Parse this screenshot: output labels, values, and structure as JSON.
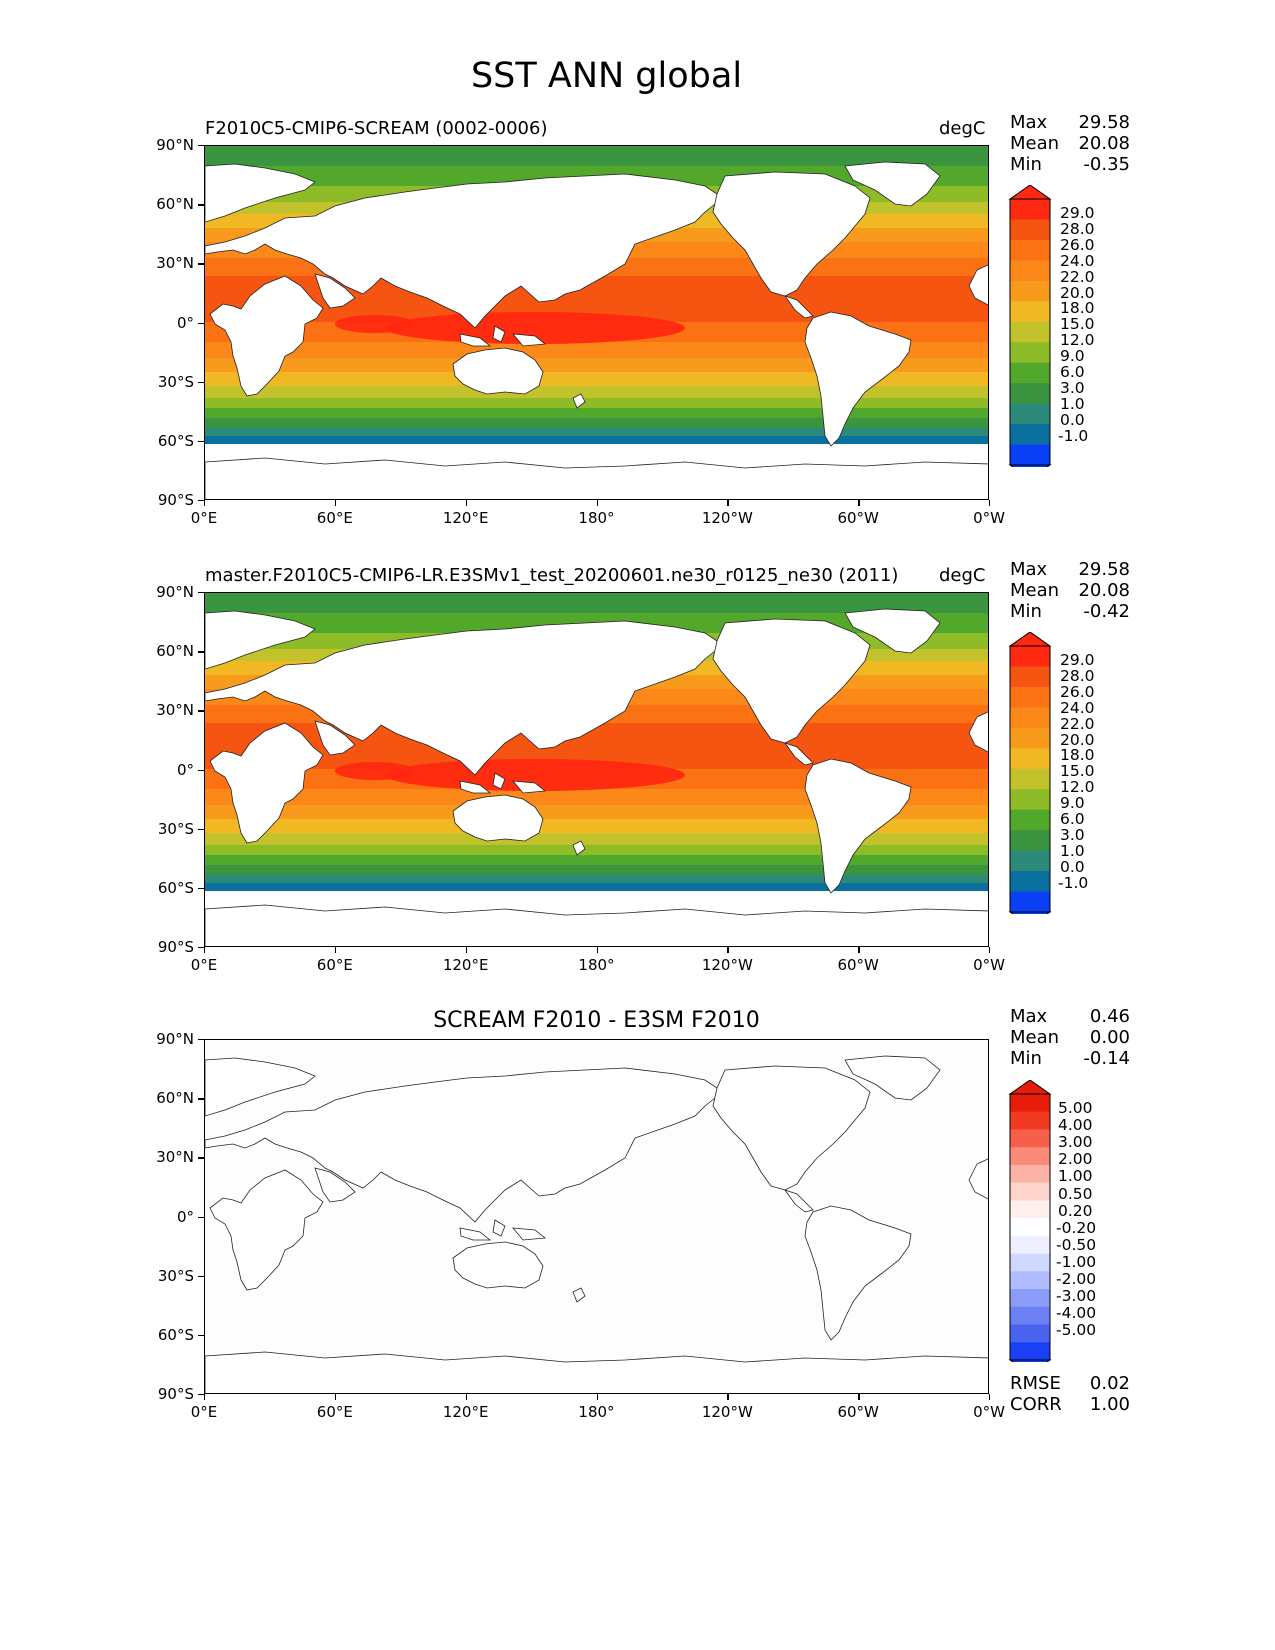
{
  "figure": {
    "title": "SST ANN global"
  },
  "axes": {
    "lat_labels": [
      "90°N",
      "60°N",
      "30°N",
      "0°",
      "30°S",
      "60°S",
      "90°S"
    ],
    "lon_labels": [
      "0°E",
      "60°E",
      "120°E",
      "180°",
      "120°W",
      "60°W",
      "0°W"
    ]
  },
  "panels": [
    {
      "title_left": "F2010C5-CMIP6-SCREAM (0002-0006)",
      "units": "degC",
      "stats": {
        "max_label": "Max",
        "max": "29.58",
        "mean_label": "Mean",
        "mean": "20.08",
        "min_label": "Min",
        "min": "-0.35"
      },
      "colorbar": [
        "29.0",
        "28.0",
        "26.0",
        "24.0",
        "22.0",
        "20.0",
        "18.0",
        "15.0",
        "12.0",
        "9.0",
        "6.0",
        "3.0",
        "1.0",
        "0.0",
        "-1.0"
      ]
    },
    {
      "title_left": "master.F2010C5-CMIP6-LR.E3SMv1_test_20200601.ne30_r0125_ne30 (2011)",
      "units": "degC",
      "stats": {
        "max_label": "Max",
        "max": "29.58",
        "mean_label": "Mean",
        "mean": "20.08",
        "min_label": "Min",
        "min": "-0.42"
      },
      "colorbar": [
        "29.0",
        "28.0",
        "26.0",
        "24.0",
        "22.0",
        "20.0",
        "18.0",
        "15.0",
        "12.0",
        "9.0",
        "6.0",
        "3.0",
        "1.0",
        "0.0",
        "-1.0"
      ]
    },
    {
      "title_center": "SCREAM F2010 - E3SM F2010",
      "stats": {
        "max_label": "Max",
        "max": "0.46",
        "mean_label": "Mean",
        "mean": "0.00",
        "min_label": "Min",
        "min": "-0.14"
      },
      "colorbar": [
        "5.00",
        "4.00",
        "3.00",
        "2.00",
        "1.00",
        "0.50",
        "0.20",
        "-0.20",
        "-0.50",
        "-1.00",
        "-2.00",
        "-3.00",
        "-4.00",
        "-5.00"
      ],
      "metrics": {
        "rmse_label": "RMSE",
        "rmse": "0.02",
        "corr_label": "CORR",
        "corr": "1.00"
      }
    }
  ],
  "colors": {
    "sst_ramp": [
      "#0a40f5",
      "#0a70a0",
      "#2c8a7a",
      "#3b9440",
      "#52a82a",
      "#8ebb28",
      "#c2c22c",
      "#f0b823",
      "#f89a1c",
      "#fb8818",
      "#fa7214",
      "#f55510",
      "#ff2810"
    ],
    "diff_ramp_pos": [
      "#fff0ee",
      "#fdd4cc",
      "#fcb3a6",
      "#fb8a78",
      "#f85f4a",
      "#f03a22",
      "#e81c0a"
    ],
    "diff_ramp_neg": [
      "#eef0ff",
      "#d0d8ff",
      "#b0bcff",
      "#8a9cf8",
      "#6a80f4",
      "#4a64f0",
      "#1a40f5"
    ],
    "land": "#ffffff"
  },
  "chart_data": [
    {
      "type": "heatmap",
      "title": "F2010C5-CMIP6-SCREAM (0002-0006)",
      "units": "degC",
      "x_range": [
        0,
        360
      ],
      "y_range": [
        -90,
        90
      ],
      "x_ticks": [
        "0°E",
        "60°E",
        "120°E",
        "180°",
        "120°W",
        "60°W",
        "0°W"
      ],
      "y_ticks": [
        "90°N",
        "60°N",
        "30°N",
        "0°",
        "30°S",
        "60°S",
        "90°S"
      ],
      "levels": [
        -1.0,
        0.0,
        1.0,
        3.0,
        6.0,
        9.0,
        12.0,
        15.0,
        18.0,
        20.0,
        22.0,
        24.0,
        26.0,
        28.0,
        29.0
      ],
      "max": 29.58,
      "mean": 20.08,
      "min": -0.35
    },
    {
      "type": "heatmap",
      "title": "master.F2010C5-CMIP6-LR.E3SMv1_test_20200601.ne30_r0125_ne30 (2011)",
      "units": "degC",
      "x_range": [
        0,
        360
      ],
      "y_range": [
        -90,
        90
      ],
      "levels": [
        -1.0,
        0.0,
        1.0,
        3.0,
        6.0,
        9.0,
        12.0,
        15.0,
        18.0,
        20.0,
        22.0,
        24.0,
        26.0,
        28.0,
        29.0
      ],
      "max": 29.58,
      "mean": 20.08,
      "min": -0.42
    },
    {
      "type": "heatmap",
      "title": "SCREAM F2010 - E3SM F2010",
      "x_range": [
        0,
        360
      ],
      "y_range": [
        -90,
        90
      ],
      "levels": [
        -5.0,
        -4.0,
        -3.0,
        -2.0,
        -1.0,
        -0.5,
        -0.2,
        0.2,
        0.5,
        1.0,
        2.0,
        3.0,
        4.0,
        5.0
      ],
      "max": 0.46,
      "mean": 0.0,
      "min": -0.14,
      "rmse": 0.02,
      "corr": 1.0
    }
  ]
}
